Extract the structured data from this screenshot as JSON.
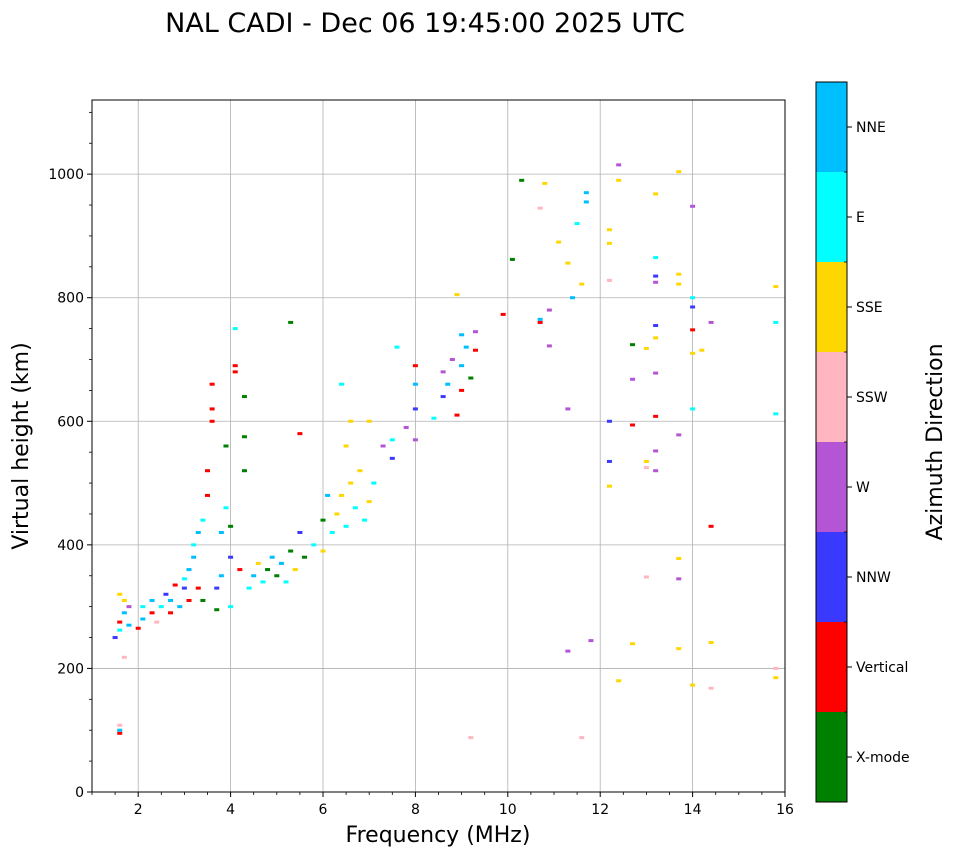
{
  "chart_data": {
    "type": "scatter",
    "title": "NAL CADI - Dec 06 19:45:00 2025 UTC",
    "xlabel": "Frequency (MHz)",
    "ylabel": "Virtual height (km)",
    "xlim": [
      1,
      16
    ],
    "ylim": [
      0,
      1120
    ],
    "xticks": [
      2,
      4,
      6,
      8,
      10,
      12,
      14,
      16
    ],
    "yticks": [
      0,
      200,
      400,
      600,
      800,
      1000
    ],
    "grid": true,
    "colorbar": {
      "label": "Azimuth Direction",
      "categories": [
        {
          "name": "X-mode",
          "color": "#008000"
        },
        {
          "name": "Vertical",
          "color": "#ff0000"
        },
        {
          "name": "NNW",
          "color": "#3a3aff"
        },
        {
          "name": "W",
          "color": "#b455d6"
        },
        {
          "name": "SSW",
          "color": "#ffb6c1"
        },
        {
          "name": "SSE",
          "color": "#ffd700"
        },
        {
          "name": "E",
          "color": "#00ffff"
        },
        {
          "name": "NNE",
          "color": "#00bfff"
        }
      ]
    },
    "points": [
      [
        1.6,
        95,
        "Vertical"
      ],
      [
        1.6,
        100,
        "NNE"
      ],
      [
        1.6,
        108,
        "SSW"
      ],
      [
        1.7,
        218,
        "SSW"
      ],
      [
        1.5,
        250,
        "NNW"
      ],
      [
        1.6,
        262,
        "E"
      ],
      [
        1.6,
        275,
        "Vertical"
      ],
      [
        1.7,
        290,
        "NNE"
      ],
      [
        1.7,
        310,
        "SSE"
      ],
      [
        1.6,
        320,
        "SSE"
      ],
      [
        1.8,
        270,
        "NNE"
      ],
      [
        1.8,
        300,
        "W"
      ],
      [
        2.0,
        265,
        "Vertical"
      ],
      [
        2.1,
        280,
        "NNE"
      ],
      [
        2.1,
        300,
        "E"
      ],
      [
        2.3,
        290,
        "Vertical"
      ],
      [
        2.3,
        310,
        "NNE"
      ],
      [
        2.4,
        275,
        "SSW"
      ],
      [
        2.5,
        300,
        "E"
      ],
      [
        2.6,
        320,
        "NNW"
      ],
      [
        2.7,
        290,
        "Vertical"
      ],
      [
        2.7,
        310,
        "NNE"
      ],
      [
        2.8,
        335,
        "Vertical"
      ],
      [
        2.9,
        300,
        "NNE"
      ],
      [
        3.0,
        330,
        "NNW"
      ],
      [
        3.0,
        345,
        "E"
      ],
      [
        3.1,
        310,
        "Vertical"
      ],
      [
        3.1,
        360,
        "NNE"
      ],
      [
        3.2,
        380,
        "NNE"
      ],
      [
        3.2,
        400,
        "E"
      ],
      [
        3.3,
        330,
        "Vertical"
      ],
      [
        3.3,
        420,
        "NNE"
      ],
      [
        3.4,
        440,
        "E"
      ],
      [
        3.4,
        310,
        "X-mode"
      ],
      [
        3.5,
        480,
        "Vertical"
      ],
      [
        3.5,
        520,
        "Vertical"
      ],
      [
        3.6,
        600,
        "Vertical"
      ],
      [
        3.6,
        620,
        "Vertical"
      ],
      [
        3.6,
        660,
        "Vertical"
      ],
      [
        3.7,
        330,
        "NNW"
      ],
      [
        3.7,
        295,
        "X-mode"
      ],
      [
        3.8,
        350,
        "NNE"
      ],
      [
        3.8,
        420,
        "NNE"
      ],
      [
        3.9,
        460,
        "E"
      ],
      [
        3.9,
        560,
        "X-mode"
      ],
      [
        4.0,
        300,
        "E"
      ],
      [
        4.0,
        380,
        "NNW"
      ],
      [
        4.0,
        430,
        "X-mode"
      ],
      [
        4.1,
        690,
        "Vertical"
      ],
      [
        4.1,
        680,
        "Vertical"
      ],
      [
        4.1,
        750,
        "E"
      ],
      [
        4.3,
        575,
        "X-mode"
      ],
      [
        4.3,
        640,
        "X-mode"
      ],
      [
        4.3,
        520,
        "X-mode"
      ],
      [
        4.2,
        360,
        "Vertical"
      ],
      [
        4.4,
        330,
        "E"
      ],
      [
        4.5,
        350,
        "NNE"
      ],
      [
        4.6,
        370,
        "SSE"
      ],
      [
        4.7,
        340,
        "E"
      ],
      [
        4.8,
        360,
        "X-mode"
      ],
      [
        4.9,
        380,
        "NNE"
      ],
      [
        5.0,
        350,
        "X-mode"
      ],
      [
        5.1,
        370,
        "NNE"
      ],
      [
        5.2,
        340,
        "E"
      ],
      [
        5.3,
        390,
        "X-mode"
      ],
      [
        5.3,
        760,
        "X-mode"
      ],
      [
        5.4,
        360,
        "SSE"
      ],
      [
        5.5,
        420,
        "NNW"
      ],
      [
        5.5,
        580,
        "Vertical"
      ],
      [
        5.6,
        380,
        "X-mode"
      ],
      [
        5.8,
        400,
        "E"
      ],
      [
        6.0,
        390,
        "SSE"
      ],
      [
        6.0,
        440,
        "X-mode"
      ],
      [
        6.1,
        480,
        "NNE"
      ],
      [
        6.2,
        420,
        "E"
      ],
      [
        6.3,
        450,
        "SSE"
      ],
      [
        6.4,
        480,
        "SSE"
      ],
      [
        6.4,
        660,
        "E"
      ],
      [
        6.5,
        430,
        "E"
      ],
      [
        6.5,
        560,
        "SSE"
      ],
      [
        6.6,
        500,
        "SSE"
      ],
      [
        6.6,
        600,
        "SSE"
      ],
      [
        6.7,
        460,
        "E"
      ],
      [
        6.8,
        520,
        "SSE"
      ],
      [
        6.9,
        440,
        "E"
      ],
      [
        7.0,
        470,
        "SSE"
      ],
      [
        7.0,
        600,
        "SSE"
      ],
      [
        7.1,
        500,
        "E"
      ],
      [
        7.3,
        560,
        "W"
      ],
      [
        7.5,
        570,
        "E"
      ],
      [
        7.5,
        540,
        "NNW"
      ],
      [
        7.6,
        720,
        "E"
      ],
      [
        7.8,
        590,
        "W"
      ],
      [
        8.0,
        570,
        "W"
      ],
      [
        8.0,
        620,
        "NNW"
      ],
      [
        8.0,
        660,
        "NNE"
      ],
      [
        8.0,
        690,
        "Vertical"
      ],
      [
        8.4,
        605,
        "E"
      ],
      [
        8.6,
        640,
        "NNW"
      ],
      [
        8.6,
        680,
        "W"
      ],
      [
        8.7,
        660,
        "NNE"
      ],
      [
        8.8,
        700,
        "W"
      ],
      [
        8.9,
        610,
        "Vertical"
      ],
      [
        9.0,
        650,
        "Vertical"
      ],
      [
        9.0,
        690,
        "NNE"
      ],
      [
        9.0,
        740,
        "NNE"
      ],
      [
        9.1,
        720,
        "NNE"
      ],
      [
        9.2,
        670,
        "X-mode"
      ],
      [
        9.3,
        715,
        "Vertical"
      ],
      [
        9.3,
        745,
        "W"
      ],
      [
        8.9,
        805,
        "SSE"
      ],
      [
        9.2,
        88,
        "SSW"
      ],
      [
        9.9,
        773,
        "Vertical"
      ],
      [
        10.1,
        862,
        "X-mode"
      ],
      [
        10.3,
        990,
        "X-mode"
      ],
      [
        10.7,
        760,
        "Vertical"
      ],
      [
        10.7,
        765,
        "NNE"
      ],
      [
        10.7,
        945,
        "SSW"
      ],
      [
        10.9,
        780,
        "W"
      ],
      [
        10.9,
        722,
        "W"
      ],
      [
        10.8,
        985,
        "SSE"
      ],
      [
        11.1,
        890,
        "SSE"
      ],
      [
        11.3,
        228,
        "W"
      ],
      [
        11.3,
        620,
        "W"
      ],
      [
        11.3,
        856,
        "SSE"
      ],
      [
        11.4,
        800,
        "NNE"
      ],
      [
        11.5,
        920,
        "E"
      ],
      [
        11.6,
        88,
        "SSW"
      ],
      [
        11.6,
        822,
        "SSE"
      ],
      [
        11.7,
        955,
        "NNE"
      ],
      [
        11.7,
        970,
        "NNE"
      ],
      [
        11.8,
        245,
        "W"
      ],
      [
        12.2,
        495,
        "SSE"
      ],
      [
        12.2,
        535,
        "NNW"
      ],
      [
        12.2,
        600,
        "NNW"
      ],
      [
        12.2,
        828,
        "SSW"
      ],
      [
        12.2,
        888,
        "SSE"
      ],
      [
        12.2,
        910,
        "SSE"
      ],
      [
        12.4,
        180,
        "SSE"
      ],
      [
        12.4,
        990,
        "SSE"
      ],
      [
        12.4,
        1015,
        "W"
      ],
      [
        12.7,
        240,
        "SSE"
      ],
      [
        12.7,
        594,
        "Vertical"
      ],
      [
        12.7,
        668,
        "W"
      ],
      [
        12.7,
        724,
        "X-mode"
      ],
      [
        13.0,
        348,
        "SSW"
      ],
      [
        13.0,
        525,
        "SSW"
      ],
      [
        13.0,
        535,
        "SSE"
      ],
      [
        13.0,
        718,
        "SSE"
      ],
      [
        13.2,
        520,
        "W"
      ],
      [
        13.2,
        552,
        "W"
      ],
      [
        13.2,
        608,
        "Vertical"
      ],
      [
        13.2,
        678,
        "W"
      ],
      [
        13.2,
        735,
        "SSE"
      ],
      [
        13.2,
        755,
        "NNW"
      ],
      [
        13.2,
        825,
        "W"
      ],
      [
        13.2,
        835,
        "NNW"
      ],
      [
        13.2,
        865,
        "E"
      ],
      [
        13.2,
        968,
        "SSE"
      ],
      [
        13.7,
        232,
        "SSE"
      ],
      [
        13.7,
        345,
        "W"
      ],
      [
        13.7,
        378,
        "SSE"
      ],
      [
        13.7,
        578,
        "W"
      ],
      [
        13.7,
        822,
        "SSE"
      ],
      [
        13.7,
        838,
        "SSE"
      ],
      [
        13.7,
        1004,
        "SSE"
      ],
      [
        14.0,
        173,
        "SSE"
      ],
      [
        14.0,
        620,
        "E"
      ],
      [
        14.0,
        710,
        "SSE"
      ],
      [
        14.0,
        748,
        "Vertical"
      ],
      [
        14.0,
        785,
        "NNW"
      ],
      [
        14.0,
        800,
        "E"
      ],
      [
        14.0,
        948,
        "W"
      ],
      [
        14.2,
        715,
        "SSE"
      ],
      [
        14.4,
        168,
        "SSW"
      ],
      [
        14.4,
        242,
        "SSE"
      ],
      [
        14.4,
        430,
        "Vertical"
      ],
      [
        14.4,
        760,
        "W"
      ],
      [
        15.8,
        185,
        "SSE"
      ],
      [
        15.8,
        200,
        "SSW"
      ],
      [
        15.8,
        612,
        "E"
      ],
      [
        15.8,
        760,
        "E"
      ],
      [
        15.8,
        818,
        "SSE"
      ]
    ]
  }
}
